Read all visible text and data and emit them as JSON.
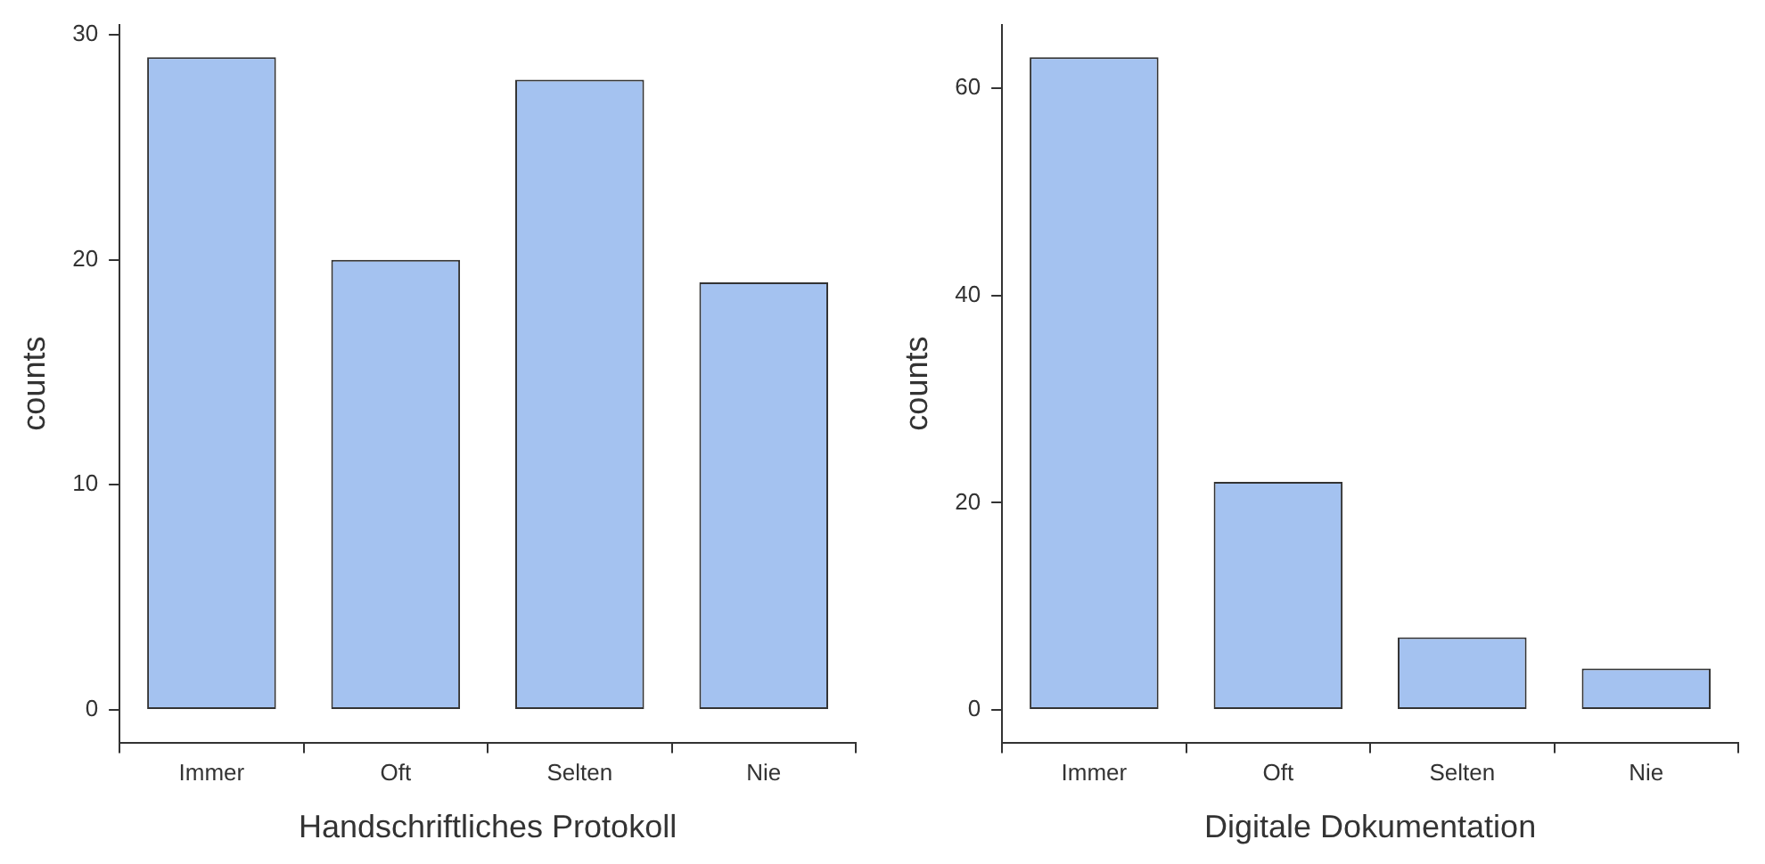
{
  "chart_data": [
    {
      "type": "bar",
      "xlabel": "Handschriftliches Protokoll",
      "ylabel": "counts",
      "categories": [
        "Immer",
        "Oft",
        "Selten",
        "Nie"
      ],
      "values": [
        29,
        20,
        28,
        19
      ],
      "color": "#a4c2f0",
      "ylim": [
        -1.45,
        30.45
      ],
      "yticks": [
        0,
        10,
        20,
        30
      ],
      "grid": false,
      "legend": false
    },
    {
      "type": "bar",
      "xlabel": "Digitale Dokumentation",
      "ylabel": "counts",
      "categories": [
        "Immer",
        "Oft",
        "Selten",
        "Nie"
      ],
      "values": [
        63,
        22,
        7,
        4
      ],
      "color": "#a4c2f0",
      "ylim": [
        -3.15,
        66.15
      ],
      "yticks": [
        0,
        20,
        40,
        60
      ],
      "grid": false,
      "legend": false
    }
  ]
}
